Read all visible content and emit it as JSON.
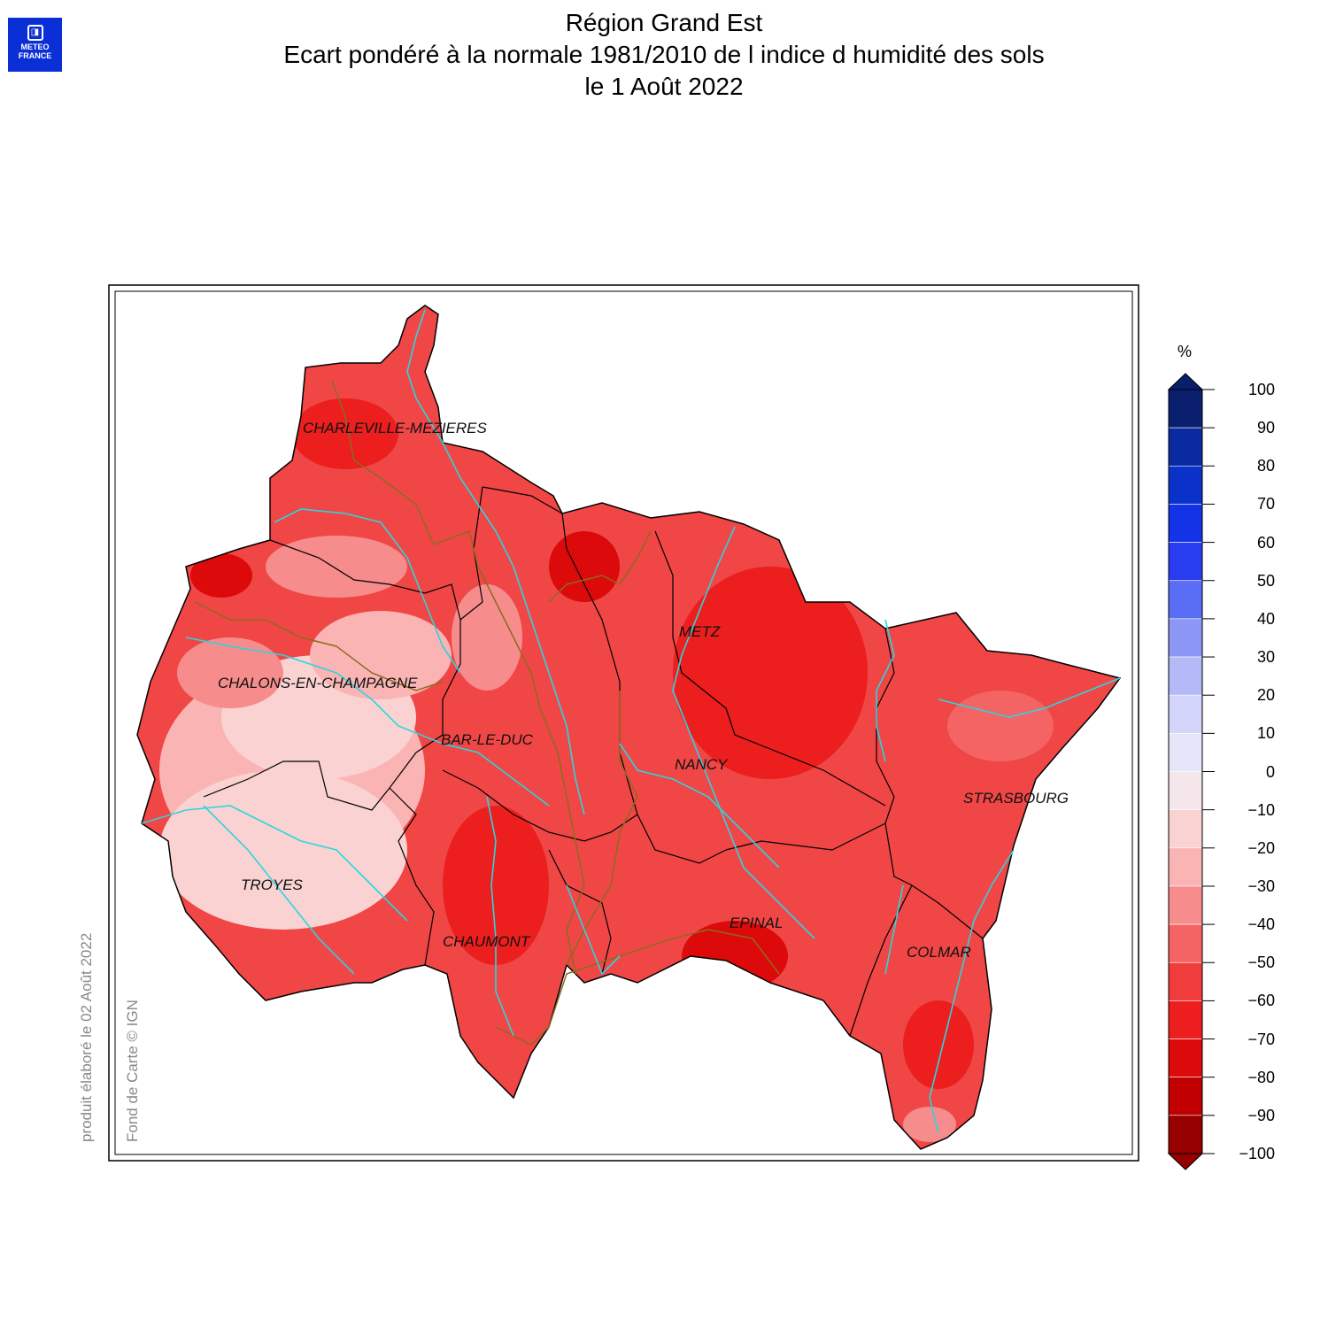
{
  "logo": {
    "line1": "METEO",
    "line2": "FRANCE"
  },
  "title": {
    "line1": "Région Grand Est",
    "line2": "Ecart pondéré à la normale 1981/2010 de l indice d humidité des sols",
    "line3": "le 1 Août 2022"
  },
  "credits": {
    "produced": "produit élaboré le 02 Août 2022",
    "basemap": "Fond de Carte © IGN"
  },
  "cities": [
    "CHARLEVILLE-MEZIERES",
    "METZ",
    "CHALONS-EN-CHAMPAGNE",
    "BAR-LE-DUC",
    "NANCY",
    "STRASBOURG",
    "TROYES",
    "EPINAL",
    "CHAUMONT",
    "COLMAR"
  ],
  "legend": {
    "unit": "%",
    "ticks": [
      "100",
      "90",
      "80",
      "70",
      "60",
      "50",
      "40",
      "30",
      "20",
      "10",
      "0",
      "−10",
      "−20",
      "−30",
      "−40",
      "−50",
      "−60",
      "−70",
      "−80",
      "−90",
      "−100"
    ],
    "colors": [
      "#0a1e6e",
      "#0a2aa0",
      "#0a32c8",
      "#1432e6",
      "#283cf0",
      "#5a6ef5",
      "#8c96f5",
      "#b4b9f8",
      "#d2d4fa",
      "#e6e6fb",
      "#f5e6ec",
      "#fad2d2",
      "#fab4b4",
      "#f78c8c",
      "#f46464",
      "#f03c3c",
      "#ec1e1e",
      "#dc0a0a",
      "#c00000",
      "#960000"
    ]
  },
  "colors": {
    "river": "#2ad6e0",
    "region_border": "#8b6b20",
    "dept_border": "#000000"
  }
}
